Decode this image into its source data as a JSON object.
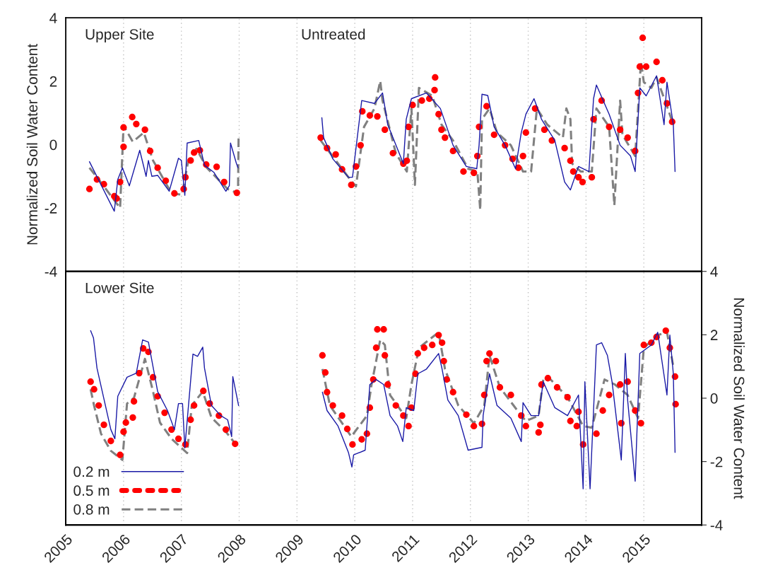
{
  "chart_data": [
    {
      "type": "line",
      "ylabel": "Normalized Soil Water Content",
      "annotations": [
        "Upper Site",
        "Untreated"
      ],
      "xlim": [
        2005,
        2016
      ],
      "xticks": [
        2005,
        2006,
        2007,
        2008,
        2009,
        2010,
        2011,
        2012,
        2013,
        2014,
        2015
      ],
      "ylim": [
        -4,
        4
      ],
      "yticks": [
        -4,
        -2,
        0,
        2,
        4
      ],
      "tick_labels": "y",
      "grid": "x",
      "legend": false,
      "series": [
        {
          "color": "#1a1aa6",
          "line_style": "solid",
          "x": [
            2005.41,
            2005.84,
            2005.9,
            2005.98,
            2006.1,
            2006.28,
            2006.39,
            2006.43,
            2006.49,
            2006.59,
            2006.79,
            2006.95,
            2007.0,
            2007.06,
            2007.1,
            2007.3,
            2007.4,
            2007.56,
            2007.77,
            2007.83,
            2007.85,
            2007.95,
            2007.98,
            2008.7,
            2009.43,
            2009.46,
            2009.62,
            2009.89,
            2009.96,
            2010.12,
            2010.34,
            2010.48,
            2010.57,
            2010.84,
            2010.89,
            2010.98,
            2011.24,
            2011.48,
            2011.7,
            2011.93,
            2012.11,
            2012.15,
            2012.2,
            2012.3,
            2012.41,
            2012.6,
            2012.78,
            2012.88,
            2012.96,
            2013.1,
            2013.23,
            2013.46,
            2013.63,
            2013.73,
            2013.87,
            2014.05,
            2014.13,
            2014.18,
            2014.4,
            2014.59,
            2014.77,
            2014.85,
            2014.93,
            2015.04,
            2015.22,
            2015.35,
            2015.4,
            2015.51,
            2015.54
          ],
          "values": [
            -0.54,
            -2.1,
            -1.1,
            -0.73,
            -1.3,
            -0.18,
            -1.0,
            -0.5,
            -1.0,
            -0.97,
            -1.47,
            -0.43,
            -0.5,
            -1.6,
            0.05,
            0.13,
            -0.65,
            -0.87,
            -1.47,
            -1.3,
            0.05,
            -0.58,
            -0.73,
            null,
            0.85,
            0.22,
            -0.45,
            -1.03,
            -1.03,
            1.39,
            1.3,
            1.63,
            0.63,
            -0.6,
            0.8,
            1.45,
            1.63,
            1.14,
            -0.02,
            -0.69,
            -0.76,
            -0.02,
            1.59,
            1.55,
            0.56,
            -0.02,
            -0.76,
            0.38,
            0.96,
            1.45,
            0.8,
            0.13,
            -1.18,
            -1.43,
            -0.69,
            -0.85,
            1.45,
            1.88,
            0.96,
            -0.02,
            -0.36,
            -0.85,
            1.79,
            1.54,
            2.17,
            0.63,
            1.97,
            0.63,
            -0.85
          ]
        },
        {
          "type": "scatter",
          "color": "#ff0000",
          "marker": "circle",
          "x": [
            2005.41,
            2005.54,
            2005.66,
            2005.84,
            2005.88,
            2005.94,
            2006.0,
            2006.0,
            2006.15,
            2006.22,
            2006.37,
            2006.46,
            2006.59,
            2006.73,
            2006.88,
            2007.04,
            2007.07,
            2007.16,
            2007.22,
            2007.32,
            2007.43,
            2007.61,
            2007.74,
            2007.96,
            2009.41,
            2009.52,
            2009.67,
            2009.78,
            2009.94,
            2010.02,
            2010.1,
            2010.13,
            2010.26,
            2010.39,
            2010.52,
            2010.66,
            2010.84,
            2010.9,
            2010.93,
            2011.0,
            2011.16,
            2011.29,
            2011.38,
            2011.39,
            2011.45,
            2011.5,
            2011.56,
            2011.7,
            2011.88,
            2012.06,
            2012.12,
            2012.15,
            2012.28,
            2012.41,
            2012.6,
            2012.73,
            2012.83,
            2012.91,
            2012.96,
            2013.12,
            2013.28,
            2013.41,
            2013.63,
            2013.73,
            2013.78,
            2013.87,
            2013.94,
            2014.1,
            2014.13,
            2014.27,
            2014.4,
            2014.59,
            2014.72,
            2014.85,
            2014.9,
            2014.93,
            2014.98,
            2015.04,
            2015.22,
            2015.32,
            2015.4,
            2015.49
          ],
          "values": [
            -1.4,
            -1.1,
            -1.25,
            -1.63,
            -1.7,
            -1.18,
            -0.07,
            0.54,
            0.87,
            0.65,
            0.47,
            -0.2,
            -0.73,
            -1.14,
            -1.54,
            -1.4,
            -1.03,
            -0.5,
            -0.25,
            -0.18,
            -0.63,
            -0.7,
            -1.18,
            -1.52,
            0.22,
            -0.11,
            -0.31,
            -0.78,
            -1.27,
            -0.69,
            -0.02,
            1.05,
            0.92,
            0.89,
            0.47,
            -0.27,
            -0.6,
            -0.51,
            0.56,
            1.25,
            1.39,
            1.45,
            1.72,
            2.12,
            0.96,
            0.47,
            0.22,
            -0.2,
            -0.85,
            -0.89,
            -0.36,
            0.56,
            1.21,
            0.31,
            -0.02,
            -0.45,
            -0.73,
            -0.36,
            0.38,
            1.14,
            0.47,
            0.13,
            -0.11,
            -0.51,
            -0.85,
            -1.03,
            -1.18,
            -1.03,
            0.8,
            1.39,
            0.56,
            0.47,
            0.22,
            -0.2,
            1.63,
            2.46,
            3.37,
            2.46,
            2.61,
            2.03,
            1.3,
            0.72
          ]
        },
        {
          "color": "#808080",
          "line_style": "dashed",
          "x": [
            2005.41,
            2005.57,
            2005.94,
            2006.0,
            2006.16,
            2006.35,
            2006.51,
            2006.83,
            2007.01,
            2007.12,
            2007.26,
            2007.44,
            2007.8,
            2007.98,
            2007.99,
            2008.7,
            2009.41,
            2009.89,
            2010.02,
            2010.16,
            2010.34,
            2010.44,
            2010.48,
            2010.71,
            2010.9,
            2010.98,
            2011.04,
            2011.11,
            2011.34,
            2011.5,
            2011.7,
            2011.96,
            2012.12,
            2012.17,
            2012.2,
            2012.33,
            2012.46,
            2012.7,
            2012.91,
            2013.05,
            2013.15,
            2013.33,
            2013.6,
            2013.66,
            2013.73,
            2013.76,
            2013.91,
            2014.1,
            2014.18,
            2014.4,
            2014.49,
            2014.59,
            2014.63,
            2014.85,
            2014.95,
            2015.0,
            2015.13,
            2015.22,
            2015.4,
            2015.51
          ],
          "values": [
            -0.73,
            -1.1,
            -2.0,
            0.6,
            0.09,
            0.38,
            -0.5,
            -1.54,
            -1.58,
            -0.5,
            -0.13,
            -0.73,
            -1.4,
            -1.54,
            0.27,
            null,
            0.13,
            -1.03,
            -1.32,
            0.56,
            1.14,
            2.01,
            1.39,
            -0.27,
            -0.85,
            1.14,
            -1.27,
            1.79,
            1.54,
            0.63,
            0.13,
            -0.76,
            -0.85,
            -2.06,
            0.8,
            1.14,
            0.38,
            -0.02,
            -0.85,
            -0.85,
            1.14,
            0.63,
            0.22,
            1.14,
            0.8,
            -0.6,
            -0.85,
            -0.85,
            1.14,
            0.56,
            -1.92,
            1.39,
            0.31,
            -0.36,
            2.61,
            1.97,
            1.79,
            2.12,
            1.21,
            0.63
          ]
        }
      ]
    },
    {
      "type": "line",
      "y2label": "Normalized Soil Water Content",
      "annotations": [
        "Lower Site"
      ],
      "xlim": [
        2005,
        2016
      ],
      "xticks": [
        2005,
        2006,
        2007,
        2008,
        2009,
        2010,
        2011,
        2012,
        2013,
        2014,
        2015
      ],
      "y2lim": [
        -4,
        4
      ],
      "y2ticks": [
        -4,
        -2,
        0,
        2,
        4
      ],
      "grid": "x",
      "legend": "bottom left",
      "series": [
        {
          "name": "0.2 m",
          "axis": "y2",
          "color": "#1a1aa6",
          "line_style": "solid",
          "x": [
            2005.43,
            2005.48,
            2005.54,
            2005.78,
            2005.85,
            2005.9,
            2006.06,
            2006.22,
            2006.33,
            2006.43,
            2006.59,
            2006.76,
            2006.88,
            2006.95,
            2007.02,
            2007.06,
            2007.2,
            2007.28,
            2007.37,
            2007.4,
            2007.52,
            2007.68,
            2007.8,
            2007.87,
            2007.89,
            2007.99,
            2008.7,
            2009.44,
            2009.52,
            2009.71,
            2009.89,
            2009.95,
            2009.98,
            2010.18,
            2010.26,
            2010.37,
            2010.5,
            2010.61,
            2010.74,
            2010.83,
            2010.89,
            2011.02,
            2011.09,
            2011.24,
            2011.45,
            2011.51,
            2011.61,
            2011.79,
            2011.96,
            2012.2,
            2012.22,
            2012.33,
            2012.46,
            2012.7,
            2012.88,
            2012.91,
            2013.05,
            2013.18,
            2013.26,
            2013.46,
            2013.68,
            2013.87,
            2013.95,
            2013.98,
            2014.07,
            2014.18,
            2014.27,
            2014.37,
            2014.45,
            2014.61,
            2014.68,
            2014.72,
            2014.85,
            2014.93,
            2015.13,
            2015.24,
            2015.4,
            2015.45,
            2015.51,
            2015.54
          ],
          "values": [
            2.13,
            1.9,
            0.95,
            -0.99,
            -1.28,
            0.06,
            0.66,
            0.79,
            1.84,
            1.77,
            0.21,
            -0.39,
            -0.99,
            -0.17,
            -0.17,
            -1.57,
            1.39,
            1.32,
            1.61,
            0.95,
            -0.23,
            -0.55,
            -0.68,
            -1.21,
            0.68,
            -0.23,
            null,
            0.19,
            -0.39,
            -0.88,
            -1.71,
            -2.17,
            -1.79,
            -1.64,
            0.43,
            0.59,
            0.43,
            -0.55,
            -0.88,
            -1.37,
            -0.3,
            -0.39,
            0.77,
            0.92,
            1.41,
            0.92,
            -0.06,
            -0.55,
            -1.64,
            -1.55,
            -0.55,
            0.77,
            -0.23,
            -0.63,
            -1.37,
            -0.14,
            -0.55,
            -0.55,
            0.52,
            -0.3,
            -0.55,
            0.1,
            -2.86,
            0.52,
            -2.86,
            1.68,
            1.75,
            1.35,
            0.52,
            -1.95,
            1.41,
            -0.06,
            -2.62,
            1.41,
            1.68,
            2.08,
            0.1,
            1.99,
            0.77,
            -1.71
          ]
        },
        {
          "type": "scatter",
          "name": "0.5 m",
          "axis": "y2",
          "color": "#ff0000",
          "marker": "circle",
          "x": [
            2005.43,
            2005.49,
            2005.57,
            2005.66,
            2005.78,
            2005.94,
            2006.0,
            2006.04,
            2006.16,
            2006.18,
            2006.27,
            2006.34,
            2006.43,
            2006.51,
            2006.59,
            2006.71,
            2006.83,
            2006.95,
            2007.07,
            2007.16,
            2007.22,
            2007.38,
            2007.49,
            2007.65,
            2007.77,
            2007.93,
            2009.44,
            2009.49,
            2009.52,
            2009.62,
            2009.78,
            2009.87,
            2009.96,
            2010.12,
            2010.21,
            2010.26,
            2010.32,
            2010.37,
            2010.39,
            2010.5,
            2010.52,
            2010.57,
            2010.71,
            2010.84,
            2010.93,
            2010.98,
            2011.05,
            2011.09,
            2011.2,
            2011.34,
            2011.45,
            2011.51,
            2011.54,
            2011.59,
            2011.7,
            2011.93,
            2012.06,
            2012.2,
            2012.24,
            2012.28,
            2012.33,
            2012.44,
            2012.51,
            2012.7,
            2012.88,
            2012.96,
            2013.18,
            2013.21,
            2013.23,
            2013.34,
            2013.5,
            2013.68,
            2013.73,
            2013.84,
            2013.87,
            2013.95,
            2014.18,
            2014.29,
            2014.4,
            2014.59,
            2014.61,
            2014.72,
            2014.85,
            2014.95,
            2015.0,
            2015.13,
            2015.22,
            2015.38,
            2015.45,
            2015.54,
            2015.55
          ],
          "values": [
            0.52,
            0.28,
            -0.23,
            -0.84,
            -1.35,
            -1.79,
            -1.06,
            -0.77,
            -0.61,
            -0.1,
            0.79,
            1.57,
            1.46,
            0.66,
            0.06,
            -0.46,
            -0.99,
            -1.28,
            -1.46,
            -0.68,
            -0.23,
            0.23,
            -0.17,
            -0.55,
            -0.99,
            -1.44,
            1.35,
            0.81,
            0.19,
            -0.23,
            -0.55,
            -0.97,
            -1.46,
            -1.3,
            -1.12,
            -0.3,
            0.59,
            1.59,
            2.17,
            2.17,
            1.35,
            0.43,
            -0.23,
            -0.55,
            -0.88,
            -0.3,
            0.77,
            1.41,
            1.59,
            1.68,
            1.99,
            1.75,
            1.17,
            0.59,
            0.19,
            -0.52,
            -0.88,
            -0.81,
            0.1,
            1.17,
            1.41,
            1.17,
            0.34,
            0.1,
            -0.55,
            -0.88,
            -1.08,
            -0.84,
            0.43,
            0.63,
            0.34,
            0.03,
            -0.72,
            -0.88,
            -0.43,
            -1.46,
            -1.12,
            -0.39,
            0.1,
            0.43,
            -0.79,
            0.52,
            -0.39,
            -0.79,
            1.68,
            1.75,
            1.93,
            2.13,
            1.59,
            0.68,
            -0.19
          ]
        },
        {
          "name": "0.8 m",
          "axis": "y2",
          "color": "#808080",
          "line_style": "dashed",
          "x": [
            2005.43,
            2005.49,
            2005.61,
            2005.78,
            2005.98,
            2006.06,
            2006.18,
            2006.37,
            2006.51,
            2006.63,
            2006.83,
            2007.1,
            2007.18,
            2007.37,
            2007.52,
            2007.77,
            2007.99,
            2008.7,
            2009.44,
            2009.57,
            2009.94,
            2010.21,
            2010.29,
            2010.44,
            2010.52,
            2010.61,
            2010.89,
            2010.98,
            2011.11,
            2011.45,
            2011.56,
            2011.79,
            2012.06,
            2012.24,
            2012.33,
            2012.51,
            2012.88,
            2012.96,
            2013.18,
            2013.26,
            2013.34,
            2013.68,
            2013.95,
            2014.1,
            2014.32,
            2014.5,
            2014.72,
            2014.9,
            2015.0,
            2015.24,
            2015.4,
            2015.51
          ],
          "values": [
            0.28,
            -0.23,
            -1.12,
            -1.66,
            -1.95,
            -0.17,
            0.01,
            1.24,
            0.21,
            -0.77,
            -1.28,
            -1.73,
            -0.23,
            0.21,
            -0.61,
            -1.06,
            -1.57,
            null,
            0.92,
            -0.23,
            -1.21,
            -0.55,
            0.43,
            1.84,
            1.68,
            0.1,
            -0.63,
            0.43,
            1.59,
            2.08,
            0.92,
            -0.23,
            -0.79,
            -0.23,
            1.35,
            0.34,
            -0.55,
            -0.72,
            -0.55,
            0.59,
            0.68,
            0.03,
            -0.88,
            -0.93,
            0.59,
            0.43,
            0.1,
            -0.63,
            1.59,
            1.99,
            2.08,
            1.01
          ]
        }
      ]
    }
  ]
}
